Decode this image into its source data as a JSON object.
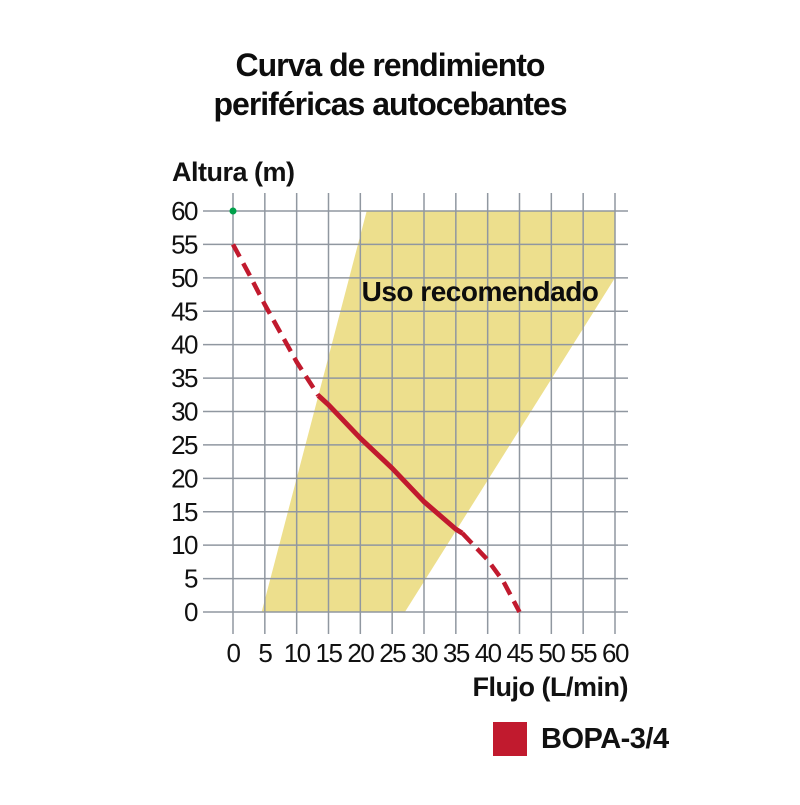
{
  "page": {
    "title_line1": "Curva de rendimiento",
    "title_line2": "periféricas autocebantes"
  },
  "legend": {
    "label": "BOPA-3/4",
    "color": "#C11A2E"
  },
  "chart_data": {
    "type": "line",
    "title": "Curva de rendimiento periféricas autocebantes",
    "xlabel": "Flujo (L/min)",
    "ylabel": "Altura (m)",
    "xlim": [
      0,
      60
    ],
    "ylim": [
      0,
      60
    ],
    "xticks": [
      0,
      5,
      10,
      15,
      20,
      25,
      30,
      35,
      40,
      45,
      50,
      55,
      60
    ],
    "yticks": [
      0,
      5,
      10,
      15,
      20,
      25,
      30,
      35,
      40,
      45,
      50,
      55,
      60
    ],
    "grid": true,
    "grid_color": "#9097A0",
    "series": [
      {
        "name": "BOPA-3/4",
        "color": "#C11A2E",
        "segments": [
          {
            "style": "dashed",
            "points": [
              [
                0,
                55
              ],
              [
                2.5,
                50.6
              ],
              [
                5,
                46
              ],
              [
                7.5,
                41.7
              ],
              [
                10,
                37.4
              ],
              [
                13.4,
                32.4
              ]
            ]
          },
          {
            "style": "solid",
            "points": [
              [
                13.4,
                32.4
              ],
              [
                15,
                31
              ],
              [
                20,
                26
              ],
              [
                25,
                21.5
              ],
              [
                30,
                16.5
              ],
              [
                35,
                12.4
              ],
              [
                36,
                11.8
              ]
            ]
          },
          {
            "style": "dashed",
            "points": [
              [
                36,
                11.8
              ],
              [
                40,
                7.8
              ],
              [
                42.5,
                4.5
              ],
              [
                45,
                0
              ]
            ]
          }
        ]
      }
    ],
    "region": {
      "label": "Uso recomendado",
      "color": "#EDDF8D",
      "points": [
        [
          4.5,
          0
        ],
        [
          21,
          60
        ],
        [
          60,
          60
        ],
        [
          60,
          50
        ],
        [
          27,
          0
        ]
      ],
      "label_pos": [
        38.8,
        48
      ]
    },
    "marker": {
      "x": 0,
      "y": 60,
      "color": "#00A14B"
    }
  }
}
